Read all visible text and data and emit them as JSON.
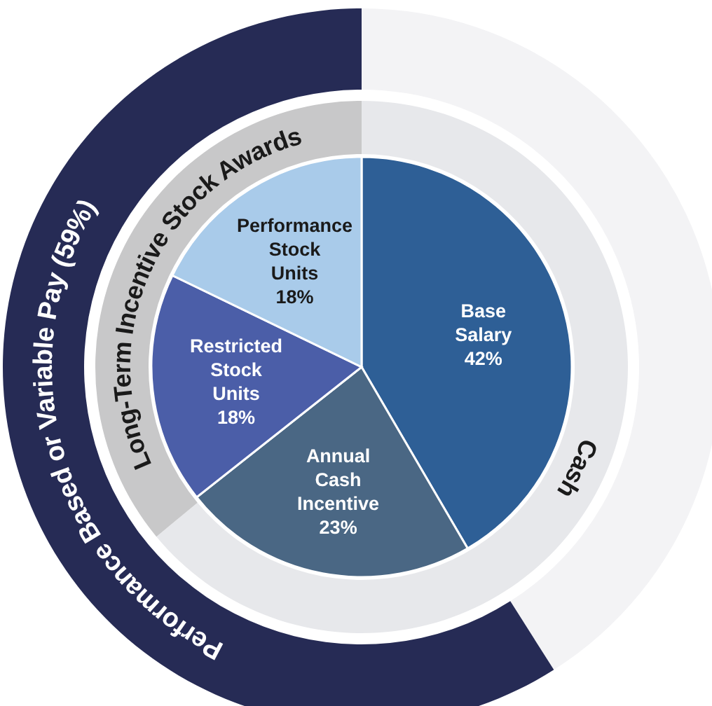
{
  "chart_data": [
    {
      "type": "pie",
      "categories": [
        "Base Salary",
        "Annual Cash Incentive",
        "Restricted Stock Units",
        "Performance Stock Units"
      ],
      "values": [
        42,
        23,
        18,
        18
      ],
      "colors": [
        "#2e5f96",
        "#4a6784",
        "#4b5ea8",
        "#a9cbea"
      ],
      "value_labels": [
        "42%",
        "23%",
        "18%",
        "18%"
      ]
    },
    {
      "type": "donut",
      "categories": [
        "Cash",
        "Long-Term Incentive Stock Awards"
      ],
      "values": [
        64,
        36
      ],
      "colors": [
        "#e7e8eb",
        "#c8c8c9"
      ]
    },
    {
      "type": "donut",
      "categories": [
        null,
        "Performance Based or Variable Pay (59%)"
      ],
      "values": [
        41,
        59
      ],
      "colors": [
        "#f3f3f5",
        "#262b55"
      ]
    }
  ]
}
